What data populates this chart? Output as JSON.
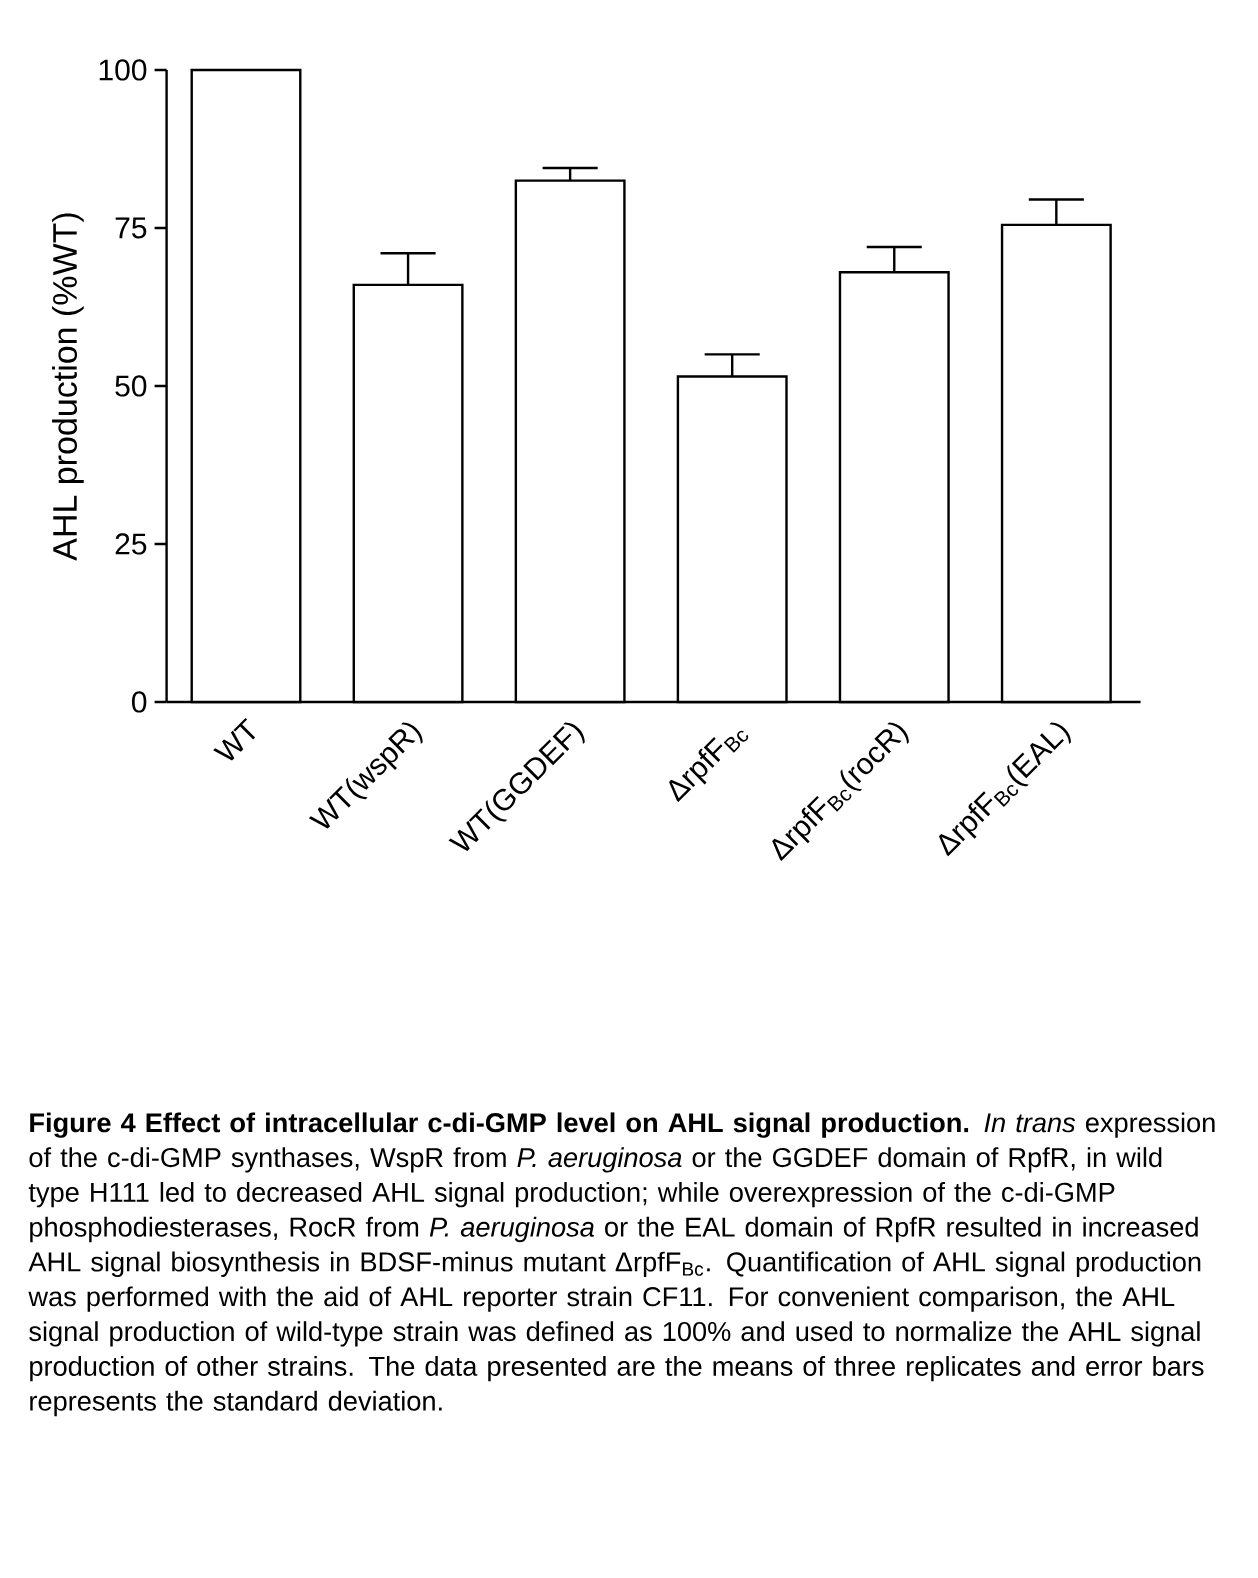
{
  "chart_data": {
    "type": "bar",
    "ylabel": "AHL production (%WT)",
    "categories": [
      "WT",
      "WT(wspR)",
      "WT(GGDEF)",
      "ΔrpfF$_{Bc}$",
      "ΔrpfF$_{Bc}$(rocR)",
      "ΔrpfF$_{Bc}$(EAL)"
    ],
    "values": [
      100,
      66,
      82.5,
      51.5,
      68,
      75.5
    ],
    "errors": [
      null,
      [
        66,
        71
      ],
      [
        82.5,
        84.5
      ],
      [
        51.5,
        55
      ],
      [
        68,
        72
      ],
      [
        75.5,
        79.5
      ]
    ],
    "color": "#ffffff",
    "ylim": [
      0,
      100
    ],
    "yticks": [
      0,
      25,
      50,
      75,
      100
    ],
    "annotations": [
      "**Figure 4 Effect of intracellular c-di-GMP level on AHL signal production.** *In trans* expression of the c-di-GMP synthases, WspR from *P. aeruginosa* or the GGDEF domain of RpfR, in wild type H111 led to decreased AHL signal production; while overexpression of the c-di-GMP phosphodiesterases, RocR from *P. aeruginosa* or the EAL domain of RpfR resulted in increased AHL signal biosynthesis in BDSF-minus mutant ΔrpfF$_{Bc}$. Quantification of AHL signal production was performed with the aid of AHL reporter strain CF11. For convenient comparison, the AHL signal production of wild-type strain was defined as 100% and used to normalize the AHL signal production of other strains. The data presented are the means of three replicates and error bars represents the standard deviation."
    ]
  }
}
